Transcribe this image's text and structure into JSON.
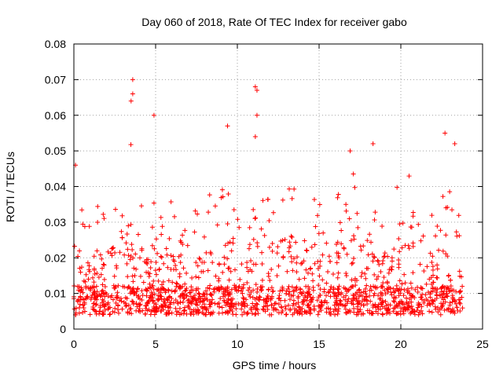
{
  "chart_data": {
    "type": "scatter",
    "title": "Day 060 of 2018, Rate Of TEC Index for receiver gabo",
    "xlabel": "GPS time / hours",
    "ylabel": "ROTI / TECUs",
    "xlim": [
      0,
      25
    ],
    "ylim": [
      0,
      0.08
    ],
    "xticks": [
      0,
      5,
      10,
      15,
      20,
      25
    ],
    "yticks": [
      0,
      0.01,
      0.02,
      0.03,
      0.04,
      0.05,
      0.06,
      0.07,
      0.08
    ],
    "ytick_labels": [
      "0",
      "0.01",
      "0.02",
      "0.03",
      "0.04",
      "0.05",
      "0.06",
      "0.07",
      "0.08"
    ],
    "grid": true,
    "marker": "+",
    "series_color": "#ff0000",
    "data_x_range": [
      0,
      23.8
    ],
    "notable_points": [
      {
        "x": 0.1,
        "y": 0.046
      },
      {
        "x": 3.6,
        "y": 0.07
      },
      {
        "x": 3.6,
        "y": 0.066
      },
      {
        "x": 3.5,
        "y": 0.064
      },
      {
        "x": 4.9,
        "y": 0.06
      },
      {
        "x": 9.4,
        "y": 0.057
      },
      {
        "x": 11.1,
        "y": 0.068
      },
      {
        "x": 11.2,
        "y": 0.067
      },
      {
        "x": 11.2,
        "y": 0.06
      },
      {
        "x": 11.1,
        "y": 0.054
      },
      {
        "x": 16.9,
        "y": 0.05
      },
      {
        "x": 18.3,
        "y": 0.052
      },
      {
        "x": 22.7,
        "y": 0.055
      },
      {
        "x": 23.3,
        "y": 0.052
      }
    ],
    "envelope": [
      {
        "x": 0.0,
        "y": 0.035
      },
      {
        "x": 0.5,
        "y": 0.03
      },
      {
        "x": 1.0,
        "y": 0.028
      },
      {
        "x": 1.5,
        "y": 0.033
      },
      {
        "x": 2.0,
        "y": 0.034
      },
      {
        "x": 2.5,
        "y": 0.04
      },
      {
        "x": 3.0,
        "y": 0.042
      },
      {
        "x": 3.5,
        "y": 0.048
      },
      {
        "x": 4.0,
        "y": 0.038
      },
      {
        "x": 4.5,
        "y": 0.026
      },
      {
        "x": 5.0,
        "y": 0.034
      },
      {
        "x": 5.5,
        "y": 0.03
      },
      {
        "x": 6.0,
        "y": 0.034
      },
      {
        "x": 6.5,
        "y": 0.028
      },
      {
        "x": 7.0,
        "y": 0.03
      },
      {
        "x": 7.5,
        "y": 0.032
      },
      {
        "x": 8.0,
        "y": 0.035
      },
      {
        "x": 8.5,
        "y": 0.033
      },
      {
        "x": 9.0,
        "y": 0.036
      },
      {
        "x": 9.5,
        "y": 0.04
      },
      {
        "x": 10.0,
        "y": 0.034
      },
      {
        "x": 10.5,
        "y": 0.034
      },
      {
        "x": 11.0,
        "y": 0.036
      },
      {
        "x": 11.5,
        "y": 0.036
      },
      {
        "x": 12.0,
        "y": 0.04
      },
      {
        "x": 12.5,
        "y": 0.034
      },
      {
        "x": 13.0,
        "y": 0.036
      },
      {
        "x": 13.5,
        "y": 0.038
      },
      {
        "x": 14.0,
        "y": 0.038
      },
      {
        "x": 14.5,
        "y": 0.034
      },
      {
        "x": 15.0,
        "y": 0.032
      },
      {
        "x": 15.5,
        "y": 0.034
      },
      {
        "x": 16.0,
        "y": 0.034
      },
      {
        "x": 16.5,
        "y": 0.038
      },
      {
        "x": 17.0,
        "y": 0.04
      },
      {
        "x": 17.5,
        "y": 0.042
      },
      {
        "x": 18.0,
        "y": 0.036
      },
      {
        "x": 18.5,
        "y": 0.03
      },
      {
        "x": 19.0,
        "y": 0.032
      },
      {
        "x": 19.5,
        "y": 0.034
      },
      {
        "x": 20.0,
        "y": 0.038
      },
      {
        "x": 20.5,
        "y": 0.04
      },
      {
        "x": 21.0,
        "y": 0.03
      },
      {
        "x": 21.5,
        "y": 0.028
      },
      {
        "x": 22.0,
        "y": 0.034
      },
      {
        "x": 22.5,
        "y": 0.038
      },
      {
        "x": 23.0,
        "y": 0.036
      },
      {
        "x": 23.5,
        "y": 0.04
      },
      {
        "x": 23.8,
        "y": 0.03
      }
    ],
    "approx_point_count": 1600
  }
}
